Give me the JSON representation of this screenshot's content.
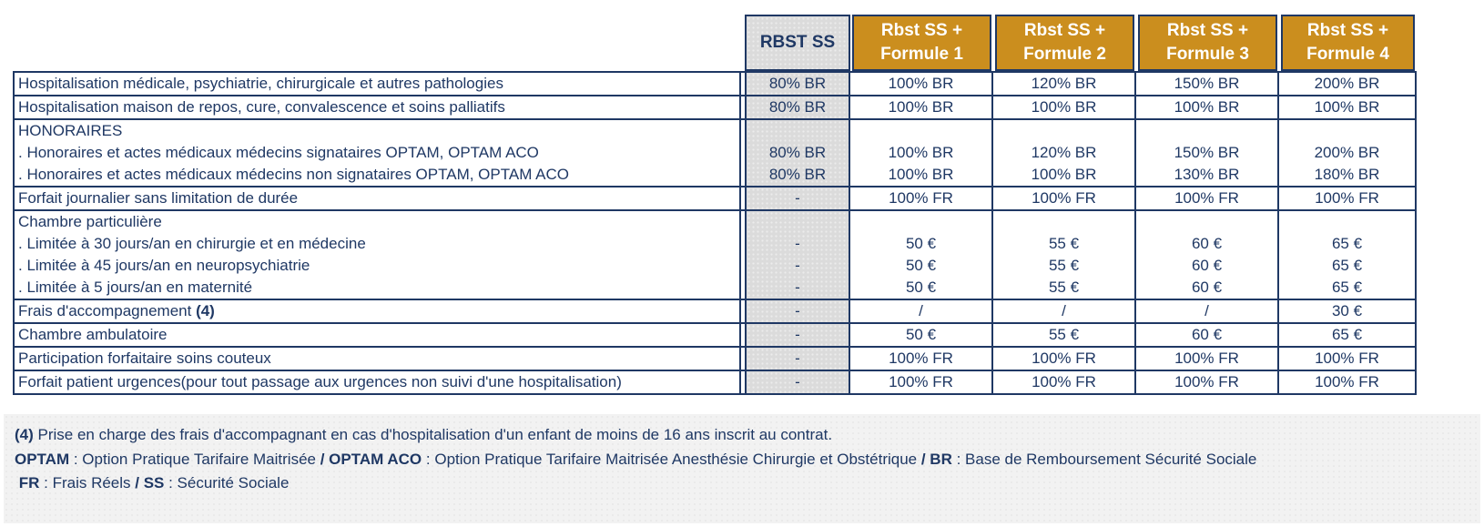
{
  "colors": {
    "navy": "#1F3864",
    "gold": "#CB8E1E",
    "grey_column": "#DBDBDB",
    "footer_bg": "#F2F2F2",
    "header_text_on_gold": "#FFFFFF"
  },
  "table": {
    "columns": [
      {
        "type": "grey",
        "lines": [
          "RBST SS"
        ]
      },
      {
        "type": "gold",
        "lines": [
          "Rbst SS +",
          "Formule 1"
        ]
      },
      {
        "type": "gold",
        "lines": [
          "Rbst SS +",
          "Formule 2"
        ]
      },
      {
        "type": "gold",
        "lines": [
          "Rbst SS +",
          "Formule 3"
        ]
      },
      {
        "type": "gold",
        "lines": [
          "Rbst SS +",
          "Formule 4"
        ]
      }
    ],
    "blocks": [
      {
        "rows": [
          {
            "label": [
              {
                "t": "Hospitalisation médicale, psychiatrie, chirurgicale et autres pathologies",
                "b": false
              }
            ],
            "values": [
              "80% BR",
              "100% BR",
              "120% BR",
              "150% BR",
              "200% BR"
            ]
          }
        ]
      },
      {
        "rows": [
          {
            "label": [
              {
                "t": "Hospitalisation maison de repos, cure, convalescence et soins palliatifs",
                "b": false
              }
            ],
            "values": [
              "80% BR",
              "100% BR",
              "100% BR",
              "100% BR",
              "100% BR"
            ]
          }
        ]
      },
      {
        "rows": [
          {
            "label": [
              {
                "t": "HONORAIRES",
                "b": false
              }
            ],
            "values": null
          },
          {
            "label": [
              {
                "t": ". Honoraires et actes médicaux médecins signataires OPTAM, OPTAM ACO",
                "b": false
              }
            ],
            "values": [
              "80% BR",
              "100% BR",
              "120% BR",
              "150% BR",
              "200% BR"
            ]
          },
          {
            "label": [
              {
                "t": ". Honoraires et actes médicaux médecins non signataires OPTAM, OPTAM ACO",
                "b": false
              }
            ],
            "values": [
              "80% BR",
              "100% BR",
              "100% BR",
              "130% BR",
              "180% BR"
            ]
          }
        ]
      },
      {
        "rows": [
          {
            "label": [
              {
                "t": "Forfait journalier sans limitation de durée",
                "b": false
              }
            ],
            "values": [
              "-",
              "100% FR",
              "100% FR",
              "100% FR",
              "100% FR"
            ]
          }
        ]
      },
      {
        "rows": [
          {
            "label": [
              {
                "t": "Chambre particulière",
                "b": false
              }
            ],
            "values": null
          },
          {
            "label": [
              {
                "t": ". Limitée à 30 jours/an en chirurgie et en médecine",
                "b": false
              }
            ],
            "values": [
              "-",
              "50 €",
              "55 €",
              "60 €",
              "65 €"
            ]
          },
          {
            "label": [
              {
                "t": ". Limitée à 45 jours/an en neuropsychiatrie",
                "b": false
              }
            ],
            "values": [
              "-",
              "50 €",
              "55 €",
              "60 €",
              "65 €"
            ]
          },
          {
            "label": [
              {
                "t": ". Limitée à 5 jours/an en maternité",
                "b": false
              }
            ],
            "values": [
              "-",
              "50 €",
              "55 €",
              "60 €",
              "65 €"
            ]
          }
        ]
      },
      {
        "rows": [
          {
            "label": [
              {
                "t": "Frais d'accompagnement ",
                "b": false
              },
              {
                "t": "(4)",
                "b": true
              }
            ],
            "values": [
              "-",
              "/",
              "/",
              "/",
              "30 €"
            ]
          }
        ]
      },
      {
        "rows": [
          {
            "label": [
              {
                "t": "Chambre ambulatoire",
                "b": false
              }
            ],
            "values": [
              "-",
              "50 €",
              "55 €",
              "60 €",
              "65 €"
            ]
          }
        ]
      },
      {
        "rows": [
          {
            "label": [
              {
                "t": "Participation forfaitaire soins couteux",
                "b": false
              }
            ],
            "values": [
              "-",
              "100% FR",
              "100% FR",
              "100% FR",
              "100% FR"
            ]
          }
        ]
      },
      {
        "rows": [
          {
            "label": [
              {
                "t": "Forfait patient urgences(pour tout passage aux urgences non suivi d'une hospitalisation)",
                "b": false
              }
            ],
            "values": [
              "-",
              "100% FR",
              "100% FR",
              "100% FR",
              "100% FR"
            ]
          }
        ]
      }
    ]
  },
  "footnotes": {
    "lines": [
      [
        {
          "t": "(4)",
          "b": true
        },
        {
          "t": " Prise en charge des frais d'accompagnant en cas d'hospitalisation d'un enfant de moins de 16 ans inscrit au contrat.",
          "b": false
        }
      ],
      [
        {
          "t": "OPTAM",
          "b": true
        },
        {
          "t": " : Option Pratique Tarifaire Maitrisée ",
          "b": false
        },
        {
          "t": "/ OPTAM ACO",
          "b": true
        },
        {
          "t": " : Option Pratique Tarifaire Maitrisée Anesthésie Chirurgie et Obstétrique ",
          "b": false
        },
        {
          "t": "/ BR",
          "b": true
        },
        {
          "t": " : Base de Remboursement Sécurité Sociale",
          "b": false
        }
      ],
      [
        {
          "t": " FR",
          "b": true
        },
        {
          "t": " : Frais Réels ",
          "b": false
        },
        {
          "t": "/ SS",
          "b": true
        },
        {
          "t": " : Sécurité Sociale",
          "b": false
        }
      ]
    ]
  }
}
